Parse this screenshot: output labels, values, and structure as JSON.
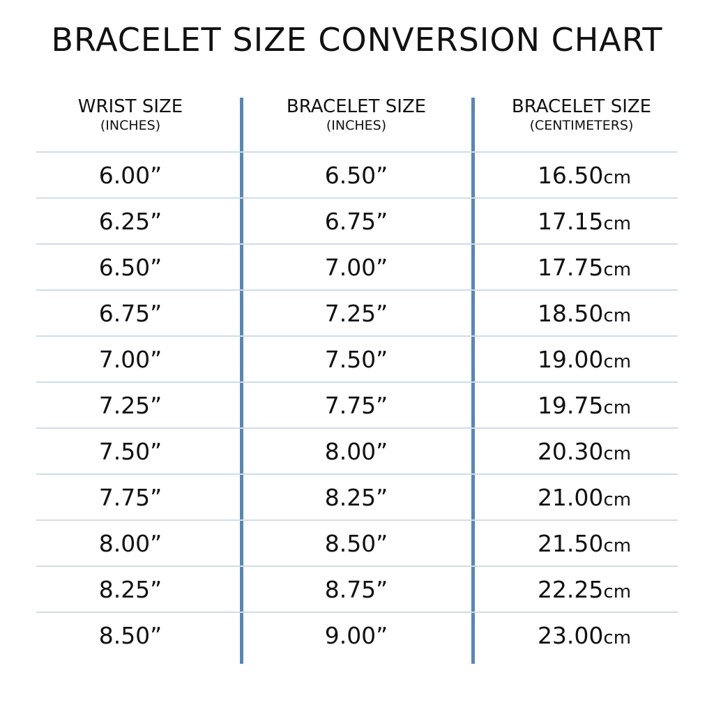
{
  "title": "BRACELET SIZE CONVERSION CHART",
  "colors": {
    "divider": "#5b86b0",
    "row_line": "#cfdde8"
  },
  "columns": [
    {
      "label": "WRIST SIZE",
      "unit": "(INCHES)"
    },
    {
      "label": "BRACELET SIZE",
      "unit": "(INCHES)"
    },
    {
      "label": "BRACELET SIZE",
      "unit": "(CENTIMETERS)"
    }
  ],
  "rows": [
    [
      "6.00”",
      "6.50”",
      "16.50",
      "cm"
    ],
    [
      "6.25”",
      "6.75”",
      "17.15",
      "cm"
    ],
    [
      "6.50”",
      "7.00”",
      "17.75",
      "cm"
    ],
    [
      "6.75”",
      "7.25”",
      "18.50",
      "cm"
    ],
    [
      "7.00”",
      "7.50”",
      "19.00",
      "cm"
    ],
    [
      "7.25”",
      "7.75”",
      "19.75",
      "cm"
    ],
    [
      "7.50”",
      "8.00”",
      "20.30",
      "cm"
    ],
    [
      "7.75”",
      "8.25”",
      "21.00",
      "cm"
    ],
    [
      "8.00”",
      "8.50”",
      "21.50",
      "cm"
    ],
    [
      "8.25”",
      "8.75”",
      "22.25",
      "cm"
    ],
    [
      "8.50”",
      "9.00”",
      "23.00",
      "cm"
    ]
  ]
}
